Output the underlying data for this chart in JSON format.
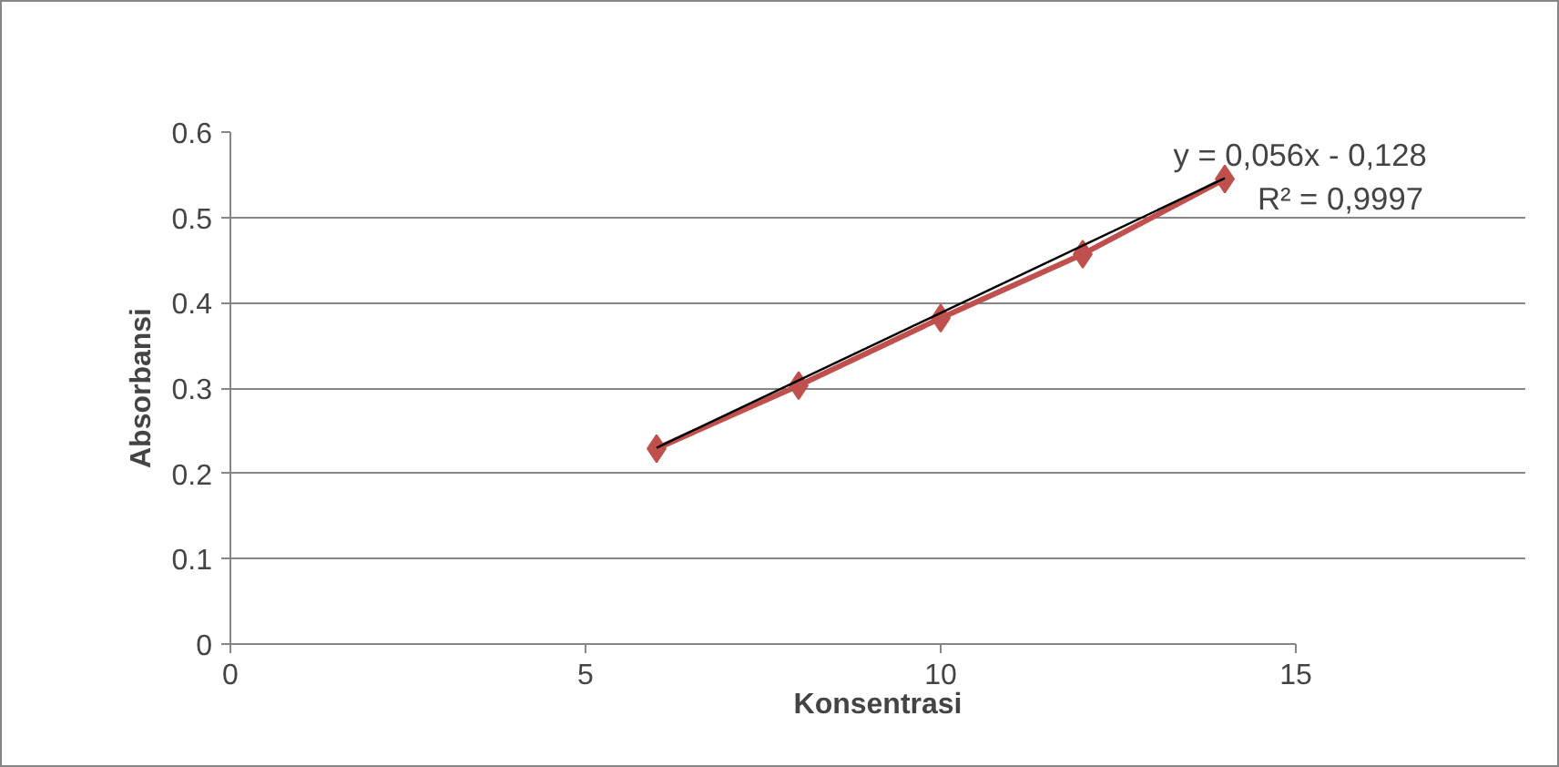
{
  "chart_data": {
    "type": "line",
    "xlabel": "Konsentrasi",
    "ylabel": "Absorbansi",
    "xlim": [
      0,
      15
    ],
    "xticks": [
      0,
      5,
      10,
      15
    ],
    "ylim": [
      0,
      0.6
    ],
    "yticks": [
      0,
      0.1,
      0.2,
      0.3,
      0.4,
      0.5,
      0.6
    ],
    "grid": "y",
    "series": [
      {
        "color": "#c0504d",
        "marker": "diamond",
        "x": [
          6,
          8,
          10,
          12,
          14
        ],
        "values": [
          0.229,
          0.303,
          0.382,
          0.457,
          0.545
        ]
      },
      {
        "color": "#000000",
        "marker": "none",
        "x": [
          6,
          14
        ],
        "values": [
          0.23,
          0.546
        ]
      }
    ],
    "annotations": [
      "y = 0,056x - 0,128",
      "R² = 0,9997"
    ]
  }
}
